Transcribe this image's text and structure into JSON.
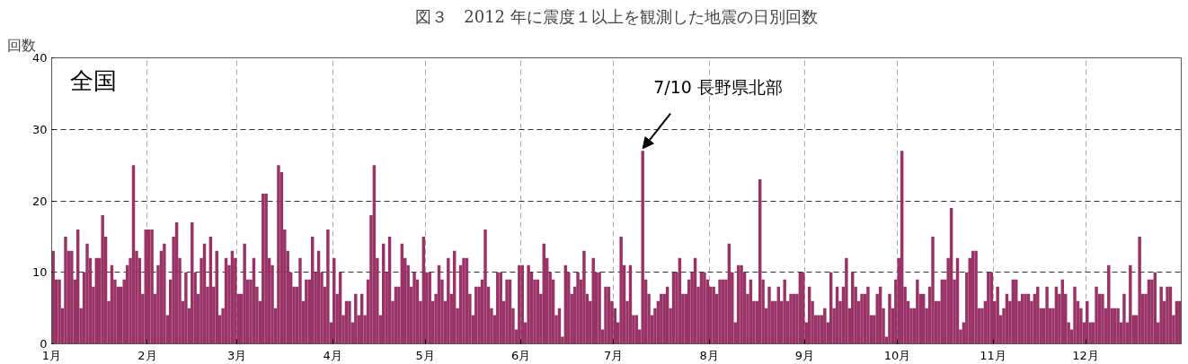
{
  "chart_data": {
    "type": "bar",
    "title": "図３　2012 年に震度１以上を観測した地震の日別回数",
    "ylabel": "回数",
    "annotations": [
      "全国",
      {
        "text": "7/10 長野県北部",
        "x": "2012-07-10",
        "y": 27
      }
    ],
    "x": [
      "2012-01-01",
      "2012-01-02",
      "2012-01-03",
      "2012-01-04",
      "2012-01-05",
      "2012-01-06",
      "2012-01-07",
      "2012-01-08",
      "2012-01-09",
      "2012-01-10",
      "2012-01-11",
      "2012-01-12",
      "2012-01-13",
      "2012-01-14",
      "2012-01-15",
      "2012-01-16",
      "2012-01-17",
      "2012-01-18",
      "2012-01-19",
      "2012-01-20",
      "2012-01-21",
      "2012-01-22",
      "2012-01-23",
      "2012-01-24",
      "2012-01-25",
      "2012-01-26",
      "2012-01-27",
      "2012-01-28",
      "2012-01-29",
      "2012-01-30",
      "2012-01-31",
      "2012-02-01",
      "2012-02-02",
      "2012-02-03",
      "2012-02-04",
      "2012-02-05",
      "2012-02-06",
      "2012-02-07",
      "2012-02-08",
      "2012-02-09",
      "2012-02-10",
      "2012-02-11",
      "2012-02-12",
      "2012-02-13",
      "2012-02-14",
      "2012-02-15",
      "2012-02-16",
      "2012-02-17",
      "2012-02-18",
      "2012-02-19",
      "2012-02-20",
      "2012-02-21",
      "2012-02-22",
      "2012-02-23",
      "2012-02-24",
      "2012-02-25",
      "2012-02-26",
      "2012-02-27",
      "2012-02-28",
      "2012-02-29",
      "2012-03-01",
      "2012-03-02",
      "2012-03-03",
      "2012-03-04",
      "2012-03-05",
      "2012-03-06",
      "2012-03-07",
      "2012-03-08",
      "2012-03-09",
      "2012-03-10",
      "2012-03-11",
      "2012-03-12",
      "2012-03-13",
      "2012-03-14",
      "2012-03-15",
      "2012-03-16",
      "2012-03-17",
      "2012-03-18",
      "2012-03-19",
      "2012-03-20",
      "2012-03-21",
      "2012-03-22",
      "2012-03-23",
      "2012-03-24",
      "2012-03-25",
      "2012-03-26",
      "2012-03-27",
      "2012-03-28",
      "2012-03-29",
      "2012-03-30",
      "2012-03-31",
      "2012-04-01",
      "2012-04-02",
      "2012-04-03",
      "2012-04-04",
      "2012-04-05",
      "2012-04-06",
      "2012-04-07",
      "2012-04-08",
      "2012-04-09",
      "2012-04-10",
      "2012-04-11",
      "2012-04-12",
      "2012-04-13",
      "2012-04-14",
      "2012-04-15",
      "2012-04-16",
      "2012-04-17",
      "2012-04-18",
      "2012-04-19",
      "2012-04-20",
      "2012-04-21",
      "2012-04-22",
      "2012-04-23",
      "2012-04-24",
      "2012-04-25",
      "2012-04-26",
      "2012-04-27",
      "2012-04-28",
      "2012-04-29",
      "2012-04-30",
      "2012-05-01",
      "2012-05-02",
      "2012-05-03",
      "2012-05-04",
      "2012-05-05",
      "2012-05-06",
      "2012-05-07",
      "2012-05-08",
      "2012-05-09",
      "2012-05-10",
      "2012-05-11",
      "2012-05-12",
      "2012-05-13",
      "2012-05-14",
      "2012-05-15",
      "2012-05-16",
      "2012-05-17",
      "2012-05-18",
      "2012-05-19",
      "2012-05-20",
      "2012-05-21",
      "2012-05-22",
      "2012-05-23",
      "2012-05-24",
      "2012-05-25",
      "2012-05-26",
      "2012-05-27",
      "2012-05-28",
      "2012-05-29",
      "2012-05-30",
      "2012-05-31",
      "2012-06-01",
      "2012-06-02",
      "2012-06-03",
      "2012-06-04",
      "2012-06-05",
      "2012-06-06",
      "2012-06-07",
      "2012-06-08",
      "2012-06-09",
      "2012-06-10",
      "2012-06-11",
      "2012-06-12",
      "2012-06-13",
      "2012-06-14",
      "2012-06-15",
      "2012-06-16",
      "2012-06-17",
      "2012-06-18",
      "2012-06-19",
      "2012-06-20",
      "2012-06-21",
      "2012-06-22",
      "2012-06-23",
      "2012-06-24",
      "2012-06-25",
      "2012-06-26",
      "2012-06-27",
      "2012-06-28",
      "2012-06-29",
      "2012-06-30",
      "2012-07-01",
      "2012-07-02",
      "2012-07-03",
      "2012-07-04",
      "2012-07-05",
      "2012-07-06",
      "2012-07-07",
      "2012-07-08",
      "2012-07-09",
      "2012-07-10",
      "2012-07-11",
      "2012-07-12",
      "2012-07-13",
      "2012-07-14",
      "2012-07-15",
      "2012-07-16",
      "2012-07-17",
      "2012-07-18",
      "2012-07-19",
      "2012-07-20",
      "2012-07-21",
      "2012-07-22",
      "2012-07-23",
      "2012-07-24",
      "2012-07-25",
      "2012-07-26",
      "2012-07-27",
      "2012-07-28",
      "2012-07-29",
      "2012-07-30",
      "2012-07-31",
      "2012-08-01",
      "2012-08-02",
      "2012-08-03",
      "2012-08-04",
      "2012-08-05",
      "2012-08-06",
      "2012-08-07",
      "2012-08-08",
      "2012-08-09",
      "2012-08-10",
      "2012-08-11",
      "2012-08-12",
      "2012-08-13",
      "2012-08-14",
      "2012-08-15",
      "2012-08-16",
      "2012-08-17",
      "2012-08-18",
      "2012-08-19",
      "2012-08-20",
      "2012-08-21",
      "2012-08-22",
      "2012-08-23",
      "2012-08-24",
      "2012-08-25",
      "2012-08-26",
      "2012-08-27",
      "2012-08-28",
      "2012-08-29",
      "2012-08-30",
      "2012-08-31",
      "2012-09-01",
      "2012-09-02",
      "2012-09-03",
      "2012-09-04",
      "2012-09-05",
      "2012-09-06",
      "2012-09-07",
      "2012-09-08",
      "2012-09-09",
      "2012-09-10",
      "2012-09-11",
      "2012-09-12",
      "2012-09-13",
      "2012-09-14",
      "2012-09-15",
      "2012-09-16",
      "2012-09-17",
      "2012-09-18",
      "2012-09-19",
      "2012-09-20",
      "2012-09-21",
      "2012-09-22",
      "2012-09-23",
      "2012-09-24",
      "2012-09-25",
      "2012-09-26",
      "2012-09-27",
      "2012-09-28",
      "2012-09-29",
      "2012-09-30",
      "2012-10-01",
      "2012-10-02",
      "2012-10-03",
      "2012-10-04",
      "2012-10-05",
      "2012-10-06",
      "2012-10-07",
      "2012-10-08",
      "2012-10-09",
      "2012-10-10",
      "2012-10-11",
      "2012-10-12",
      "2012-10-13",
      "2012-10-14",
      "2012-10-15",
      "2012-10-16",
      "2012-10-17",
      "2012-10-18",
      "2012-10-19",
      "2012-10-20",
      "2012-10-21",
      "2012-10-22",
      "2012-10-23",
      "2012-10-24",
      "2012-10-25",
      "2012-10-26",
      "2012-10-27",
      "2012-10-28",
      "2012-10-29",
      "2012-10-30",
      "2012-10-31",
      "2012-11-01",
      "2012-11-02",
      "2012-11-03",
      "2012-11-04",
      "2012-11-05",
      "2012-11-06",
      "2012-11-07",
      "2012-11-08",
      "2012-11-09",
      "2012-11-10",
      "2012-11-11",
      "2012-11-12",
      "2012-11-13",
      "2012-11-14",
      "2012-11-15",
      "2012-11-16",
      "2012-11-17",
      "2012-11-18",
      "2012-11-19",
      "2012-11-20",
      "2012-11-21",
      "2012-11-22",
      "2012-11-23",
      "2012-11-24",
      "2012-11-25",
      "2012-11-26",
      "2012-11-27",
      "2012-11-28",
      "2012-11-29",
      "2012-11-30",
      "2012-12-01",
      "2012-12-02",
      "2012-12-03",
      "2012-12-04",
      "2012-12-05",
      "2012-12-06",
      "2012-12-07",
      "2012-12-08",
      "2012-12-09",
      "2012-12-10",
      "2012-12-11",
      "2012-12-12",
      "2012-12-13",
      "2012-12-14",
      "2012-12-15",
      "2012-12-16",
      "2012-12-17",
      "2012-12-18",
      "2012-12-19",
      "2012-12-20",
      "2012-12-21",
      "2012-12-22",
      "2012-12-23",
      "2012-12-24",
      "2012-12-25",
      "2012-12-26",
      "2012-12-27",
      "2012-12-28",
      "2012-12-29",
      "2012-12-30",
      "2012-12-31"
    ],
    "series": [
      {
        "color": "#993366",
        "values": [
          13,
          9,
          9,
          5,
          15,
          13,
          13,
          9,
          16,
          5,
          10,
          14,
          12,
          8,
          12,
          12,
          18,
          15,
          6,
          11,
          9,
          8,
          8,
          9,
          11,
          12,
          25,
          13,
          12,
          7,
          16,
          16,
          16,
          7,
          11,
          13,
          14,
          4,
          9,
          15,
          17,
          12,
          6,
          10,
          5,
          17,
          10,
          7,
          12,
          14,
          8,
          15,
          8,
          13,
          4,
          5,
          12,
          11,
          13,
          12,
          7,
          7,
          14,
          9,
          9,
          12,
          8,
          6,
          21,
          21,
          12,
          11,
          5,
          25,
          24,
          16,
          13,
          10,
          8,
          8,
          12,
          6,
          9,
          9,
          15,
          10,
          13,
          10,
          8,
          16,
          3,
          12,
          7,
          10,
          4,
          6,
          6,
          3,
          7,
          4,
          7,
          4,
          9,
          18,
          25,
          12,
          4,
          14,
          10,
          15,
          6,
          8,
          8,
          14,
          12,
          11,
          8,
          10,
          9,
          6,
          15,
          10,
          10,
          6,
          7,
          11,
          9,
          6,
          12,
          7,
          13,
          5,
          11,
          12,
          12,
          7,
          4,
          8,
          8,
          9,
          16,
          8,
          5,
          4,
          10,
          10,
          6,
          9,
          9,
          5,
          2,
          11,
          11,
          3,
          11,
          10,
          9,
          9,
          7,
          14,
          12,
          10,
          9,
          4,
          5,
          1,
          11,
          10,
          7,
          8,
          10,
          9,
          13,
          7,
          6,
          12,
          10,
          10,
          2,
          8,
          8,
          6,
          5,
          3,
          15,
          11,
          6,
          11,
          4,
          4,
          2,
          27,
          9,
          7,
          4,
          5,
          6,
          7,
          7,
          8,
          5,
          10,
          10,
          12,
          7,
          7,
          9,
          10,
          12,
          8,
          10,
          10,
          9,
          8,
          8,
          7,
          9,
          9,
          9,
          14,
          10,
          3,
          11,
          11,
          10,
          7,
          9,
          6,
          6,
          23,
          9,
          5,
          8,
          6,
          6,
          8,
          6,
          9,
          6,
          7,
          7,
          7,
          10,
          10,
          3,
          8,
          6,
          4,
          4,
          4,
          5,
          3,
          10,
          5,
          8,
          6,
          8,
          12,
          5,
          10,
          8,
          6,
          7,
          7,
          8,
          4,
          4,
          7,
          8,
          5,
          1,
          7,
          5,
          9,
          12,
          27,
          8,
          6,
          5,
          5,
          9,
          7,
          7,
          5,
          8,
          15,
          6,
          6,
          9,
          9,
          12,
          19,
          9,
          12,
          2,
          3,
          10,
          12,
          13,
          13,
          5,
          5,
          6,
          10,
          10,
          6,
          8,
          4,
          5,
          7,
          6,
          9,
          9,
          6,
          7,
          7,
          7,
          6,
          7,
          8,
          5,
          5,
          8,
          5,
          5,
          8,
          7,
          9,
          7,
          3,
          2,
          8,
          6,
          5,
          3,
          6,
          3,
          3,
          8,
          7,
          7,
          5,
          11,
          5,
          5,
          5,
          3,
          7,
          3,
          11,
          4,
          4,
          15,
          7,
          7,
          9,
          9,
          10,
          3,
          8,
          6,
          8,
          8,
          4,
          6,
          6
        ]
      }
    ],
    "xlim": [
      "2012-01-01",
      "2013-01-01"
    ],
    "xticks": [
      {
        "value": "2012-01-01",
        "label": "1月"
      },
      {
        "value": "2012-02-01",
        "label": "2月"
      },
      {
        "value": "2012-03-01",
        "label": "3月"
      },
      {
        "value": "2012-04-01",
        "label": "4月"
      },
      {
        "value": "2012-05-01",
        "label": "5月"
      },
      {
        "value": "2012-06-01",
        "label": "6月"
      },
      {
        "value": "2012-07-01",
        "label": "7月"
      },
      {
        "value": "2012-08-01",
        "label": "8月"
      },
      {
        "value": "2012-09-01",
        "label": "9月"
      },
      {
        "value": "2012-10-01",
        "label": "10月"
      },
      {
        "value": "2012-11-01",
        "label": "11月"
      },
      {
        "value": "2012-12-01",
        "label": "12月"
      }
    ],
    "ylim": [
      0,
      40
    ],
    "yticks": [
      0,
      10,
      20,
      30,
      40
    ],
    "grid": true
  }
}
